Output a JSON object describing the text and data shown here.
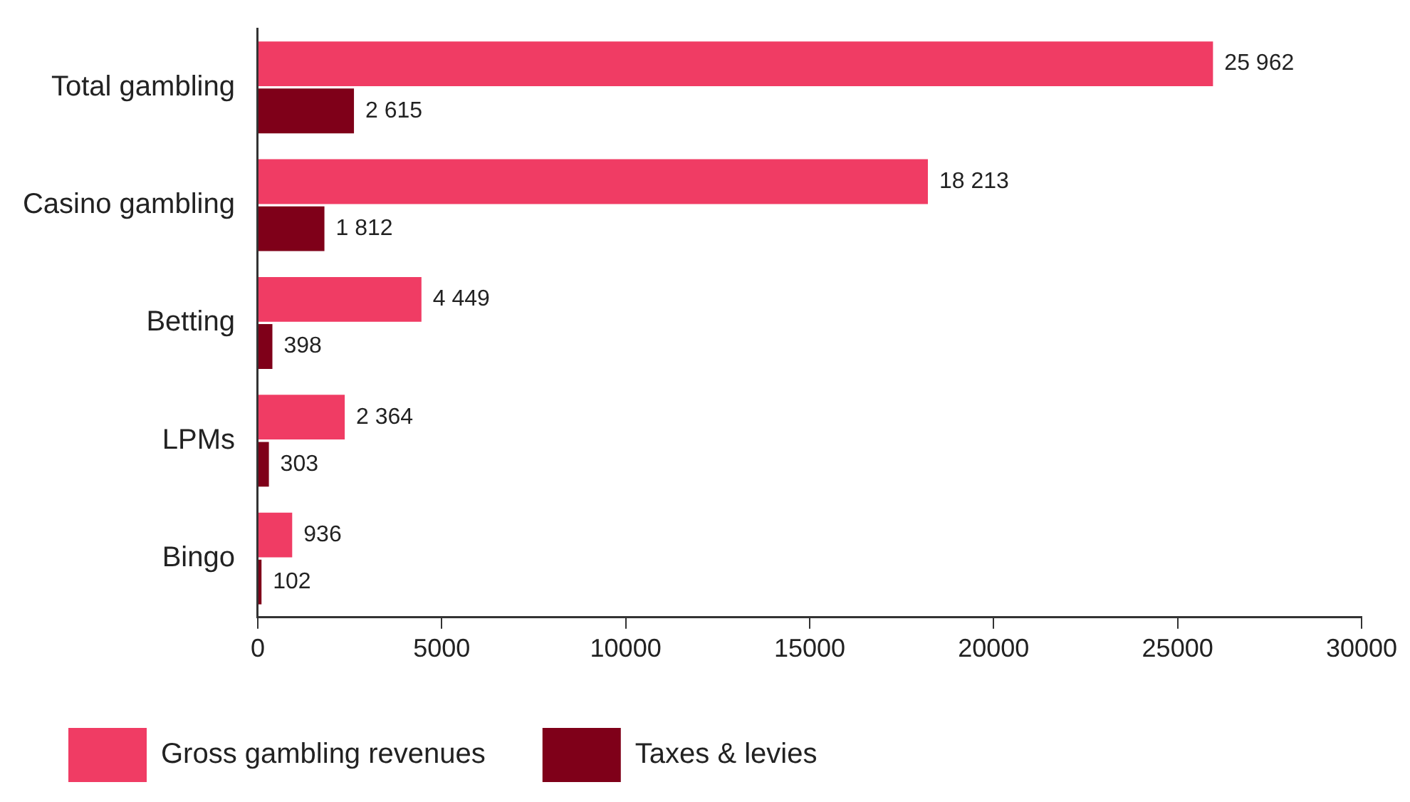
{
  "chart_data": {
    "type": "bar",
    "orientation": "horizontal",
    "categories": [
      "Total gambling",
      "Casino gambling",
      "Betting",
      "LPMs",
      "Bingo"
    ],
    "series": [
      {
        "name": "Gross gambling revenues",
        "color": "#f03c64",
        "values": [
          25962,
          18213,
          4449,
          2364,
          936
        ],
        "value_labels": [
          "25 962",
          "18 213",
          "4 449",
          "2 364",
          "936"
        ]
      },
      {
        "name": "Taxes & levies",
        "color": "#7f0019",
        "values": [
          2615,
          1812,
          398,
          303,
          102
        ],
        "value_labels": [
          "2 615",
          "1 812",
          "398",
          "303",
          "102"
        ]
      }
    ],
    "xlim": [
      0,
      30000
    ],
    "xticks": [
      0,
      5000,
      10000,
      15000,
      20000,
      25000,
      30000
    ],
    "grid": false,
    "legend": "bottom left"
  }
}
